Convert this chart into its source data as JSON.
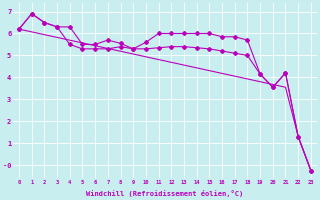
{
  "xlabel": "Windchill (Refroidissement éolien,°C)",
  "bg_color": "#c8eef0",
  "line_color": "#bb00bb",
  "xlim": [
    -0.5,
    23.5
  ],
  "ylim": [
    -0.6,
    7.4
  ],
  "yticks": [
    0,
    1,
    2,
    3,
    4,
    5,
    6,
    7
  ],
  "ytick_labels": [
    "-0",
    "1",
    "2",
    "3",
    "4",
    "5",
    "6",
    "7"
  ],
  "xtick_labels": [
    "0",
    "1",
    "2",
    "3",
    "4",
    "5",
    "6",
    "7",
    "8",
    "9",
    "10",
    "11",
    "12",
    "13",
    "14",
    "15",
    "16",
    "17",
    "18",
    "19",
    "20",
    "21",
    "22",
    "23"
  ],
  "line1_x": [
    0,
    1,
    2,
    3,
    4,
    5,
    6,
    7,
    8,
    9,
    10,
    11,
    12,
    13,
    14,
    15,
    16,
    17,
    18,
    19,
    20,
    21,
    22,
    23
  ],
  "line1_y": [
    6.2,
    6.9,
    6.5,
    6.3,
    6.3,
    5.5,
    5.5,
    5.7,
    5.55,
    5.3,
    5.6,
    6.0,
    6.0,
    6.0,
    6.0,
    6.0,
    5.85,
    5.85,
    5.7,
    4.15,
    3.55,
    4.2,
    1.3,
    -0.25
  ],
  "line2_x": [
    0,
    1,
    2,
    3,
    4,
    5,
    6,
    7,
    8,
    9,
    10,
    11,
    12,
    13,
    14,
    15,
    16,
    17,
    18,
    19,
    20,
    21,
    22,
    23
  ],
  "line2_y": [
    6.2,
    6.9,
    6.5,
    6.3,
    5.5,
    5.3,
    5.3,
    5.3,
    5.4,
    5.3,
    5.3,
    5.35,
    5.4,
    5.4,
    5.35,
    5.3,
    5.2,
    5.1,
    5.0,
    4.15,
    3.55,
    4.2,
    1.3,
    -0.25
  ],
  "line3_x": [
    0,
    21,
    22,
    23
  ],
  "line3_y": [
    6.2,
    3.55,
    1.3,
    -0.25
  ]
}
